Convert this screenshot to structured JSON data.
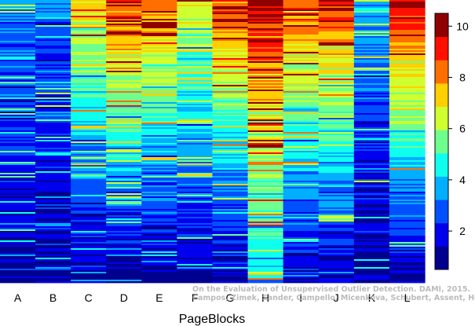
{
  "chart_data": {
    "type": "heatmap",
    "xlabel": "PageBlocks",
    "ylabel": "",
    "title": "",
    "columns": [
      "A",
      "B",
      "C",
      "D",
      "E",
      "F",
      "G",
      "H",
      "I",
      "J",
      "K",
      "L"
    ],
    "colorbar": {
      "ticks": [
        2,
        4,
        6,
        8,
        10
      ],
      "range": [
        0.5,
        10.5
      ],
      "levels": 10,
      "colors": [
        "#00008F",
        "#0000EF",
        "#0050FF",
        "#00AFFF",
        "#0FFFEF",
        "#6FFF8F",
        "#CFFF2F",
        "#FFCF00",
        "#FF6F00",
        "#FF0F00",
        "#8F0000"
      ]
    },
    "column_profiles": {
      "A": {
        "top": 3.5,
        "bottom": 1.2,
        "stripes": 0.35
      },
      "B": {
        "top": 3.0,
        "bottom": 1.2,
        "stripes": 0.35
      },
      "C": {
        "top": 7.5,
        "bottom": 1.0,
        "stripes": 0.3
      },
      "D": {
        "top": 9.0,
        "bottom": 1.0,
        "stripes": 0.3
      },
      "E": {
        "top": 8.5,
        "bottom": 1.0,
        "stripes": 0.3
      },
      "F": {
        "top": 7.0,
        "bottom": 1.0,
        "stripes": 0.3
      },
      "G": {
        "top": 9.0,
        "bottom": 1.0,
        "stripes": 0.3
      },
      "H": {
        "top": 10.0,
        "bottom": 4.0,
        "stripes": 0.45
      },
      "I": {
        "top": 9.0,
        "bottom": 1.2,
        "stripes": 0.3
      },
      "J": {
        "top": 9.5,
        "bottom": 1.3,
        "stripes": 0.3
      },
      "K": {
        "top": 4.0,
        "bottom": 1.0,
        "stripes": 0.25
      },
      "L": {
        "top": 10.0,
        "bottom": 1.0,
        "stripes": 0.05
      }
    }
  },
  "watermark": {
    "line1": "On the Evaluation of Unsupervised Outlier Detection. DAMI, 2015.",
    "line2": "Campos, Zimek, Sander, Campello, Micenkova, Schubert, Assent, Houle"
  }
}
